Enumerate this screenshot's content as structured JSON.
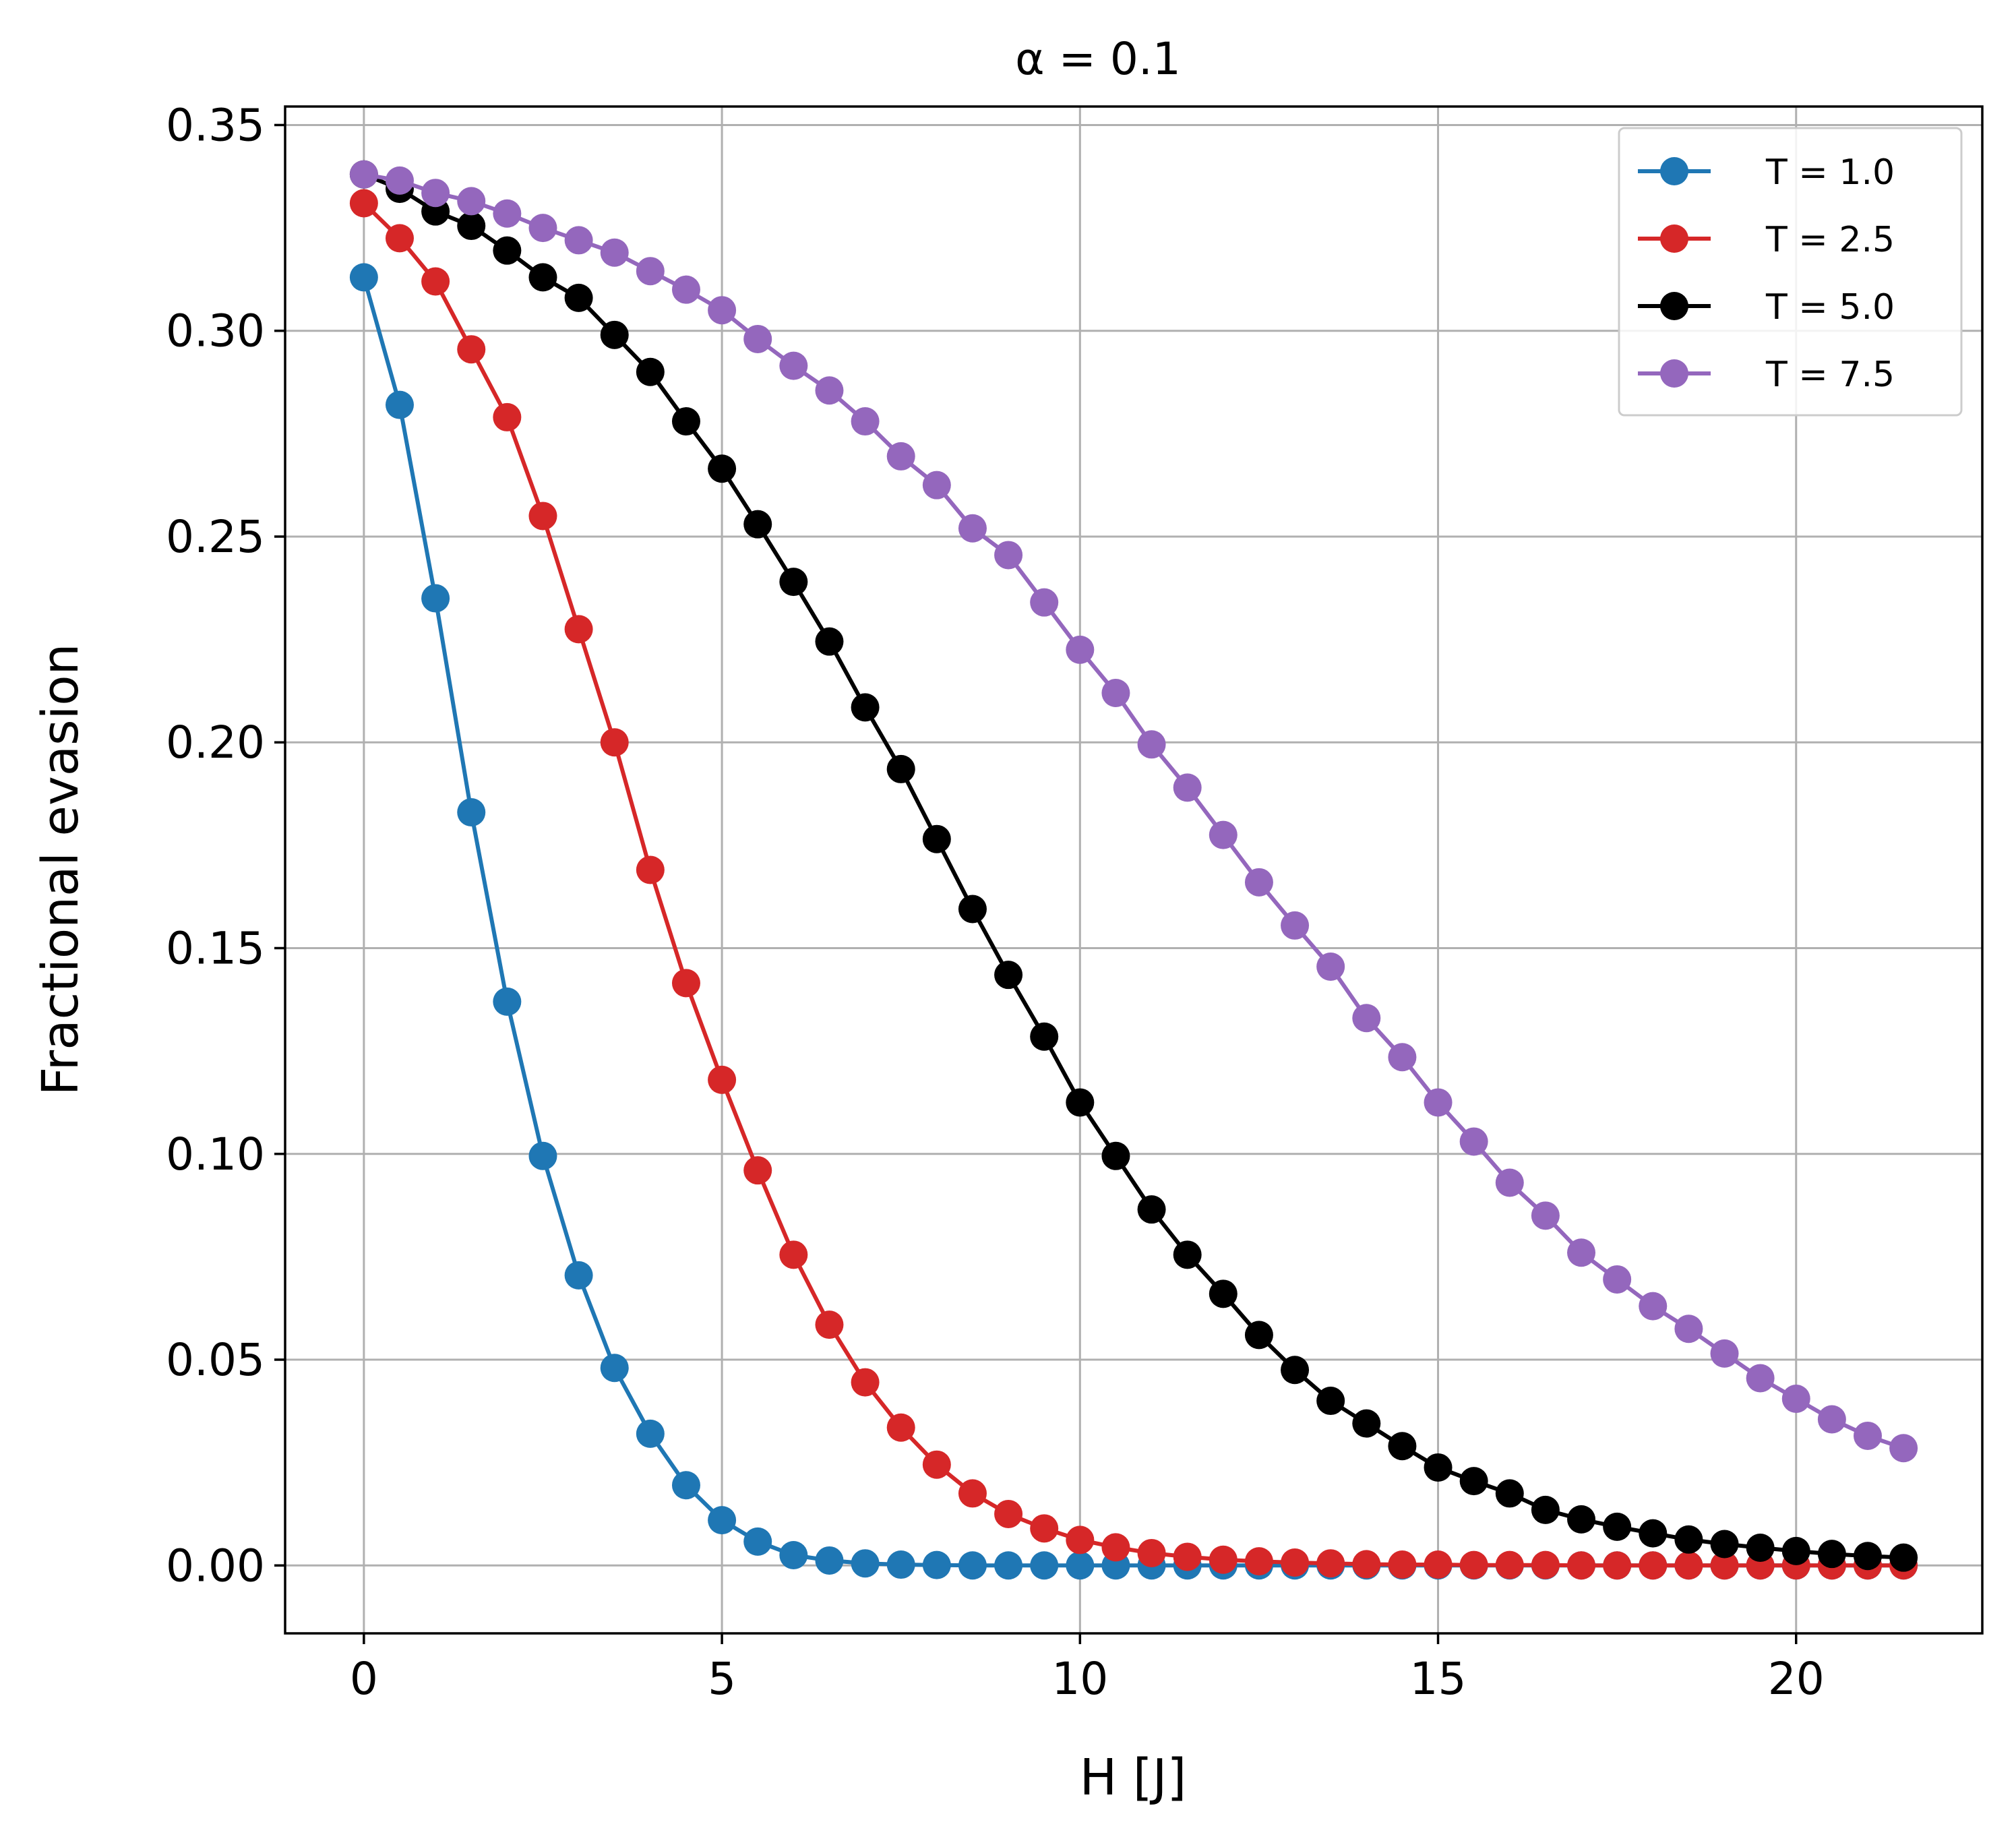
{
  "chart_data": {
    "type": "line",
    "title": "α = 0.1",
    "xlabel": "H [J]",
    "ylabel": "Fractional evasion",
    "xlim": [
      -1.1,
      22.6
    ],
    "ylim": [
      -0.0165,
      0.3545
    ],
    "xticks": [
      0,
      5,
      10,
      15,
      20
    ],
    "xtick_labels": [
      "0",
      "5",
      "10",
      "15",
      "20"
    ],
    "yticks": [
      0.0,
      0.05,
      0.1,
      0.15,
      0.2,
      0.25,
      0.3,
      0.35
    ],
    "ytick_labels": [
      "0.00",
      "0.05",
      "0.10",
      "0.15",
      "0.20",
      "0.25",
      "0.30",
      "0.35"
    ],
    "grid": true,
    "legend_position": "top-right",
    "x": [
      0,
      0.5,
      1,
      1.5,
      2,
      2.5,
      3,
      3.5,
      4,
      4.5,
      5,
      5.5,
      6,
      6.5,
      7,
      7.5,
      8,
      8.5,
      9,
      9.5,
      10,
      10.5,
      11,
      11.5,
      12,
      12.5,
      13,
      13.5,
      14,
      14.5,
      15,
      15.5,
      16,
      16.5,
      17,
      17.5,
      18,
      18.5,
      19,
      19.5,
      20,
      20.5,
      21,
      21.5
    ],
    "series": [
      {
        "name": "T = 1.0",
        "color": "#1f77b4",
        "values": [
          0.313,
          0.282,
          0.235,
          0.183,
          0.137,
          0.0995,
          0.0705,
          0.048,
          0.032,
          0.0195,
          0.011,
          0.0058,
          0.0025,
          0.0012,
          0.0005,
          0.0002,
          0.0001,
          0.0,
          0.0,
          0.0,
          0.0,
          0.0,
          0.0,
          0.0,
          0.0,
          0.0,
          0.0,
          0.0,
          0.0,
          0.0,
          0.0,
          0.0,
          0.0,
          0.0,
          0.0,
          0.0,
          0.0,
          0.0,
          0.0,
          0.0,
          0.0,
          0.0,
          0.0,
          0.0
        ]
      },
      {
        "name": "T = 2.5",
        "color": "#d62728",
        "values": [
          0.331,
          0.3225,
          0.312,
          0.2955,
          0.279,
          0.255,
          0.2275,
          0.2,
          0.169,
          0.1415,
          0.118,
          0.096,
          0.0755,
          0.0585,
          0.0445,
          0.0335,
          0.0245,
          0.0175,
          0.0125,
          0.009,
          0.0062,
          0.0044,
          0.003,
          0.0021,
          0.0014,
          0.001,
          0.0007,
          0.0005,
          0.0003,
          0.0002,
          0.0002,
          0.0001,
          0.0001,
          0.0001,
          0.0,
          0.0,
          0.0,
          0.0,
          0.0,
          0.0,
          0.0,
          0.0,
          0.0,
          0.0
        ]
      },
      {
        "name": "T = 5.0",
        "color": "#000000",
        "values": [
          0.338,
          0.3345,
          0.329,
          0.3255,
          0.3195,
          0.313,
          0.308,
          0.299,
          0.29,
          0.278,
          0.2665,
          0.253,
          0.239,
          0.2245,
          0.2085,
          0.1935,
          0.1765,
          0.1595,
          0.1435,
          0.1285,
          0.1125,
          0.0995,
          0.0865,
          0.0755,
          0.066,
          0.056,
          0.0475,
          0.04,
          0.0345,
          0.029,
          0.0238,
          0.0205,
          0.0175,
          0.0135,
          0.0112,
          0.0094,
          0.0078,
          0.0063,
          0.0052,
          0.0043,
          0.0035,
          0.0028,
          0.0023,
          0.0019
        ]
      },
      {
        "name": "T = 7.5",
        "color": "#9467bd",
        "values": [
          0.338,
          0.3365,
          0.3335,
          0.3315,
          0.3285,
          0.325,
          0.322,
          0.319,
          0.3145,
          0.31,
          0.305,
          0.298,
          0.2915,
          0.2855,
          0.278,
          0.2695,
          0.2625,
          0.252,
          0.2455,
          0.234,
          0.2225,
          0.212,
          0.1995,
          0.189,
          0.1775,
          0.166,
          0.1555,
          0.1455,
          0.133,
          0.1235,
          0.1125,
          0.103,
          0.093,
          0.085,
          0.076,
          0.0695,
          0.063,
          0.0575,
          0.0515,
          0.0455,
          0.0405,
          0.0355,
          0.0315,
          0.0285
        ]
      }
    ]
  }
}
